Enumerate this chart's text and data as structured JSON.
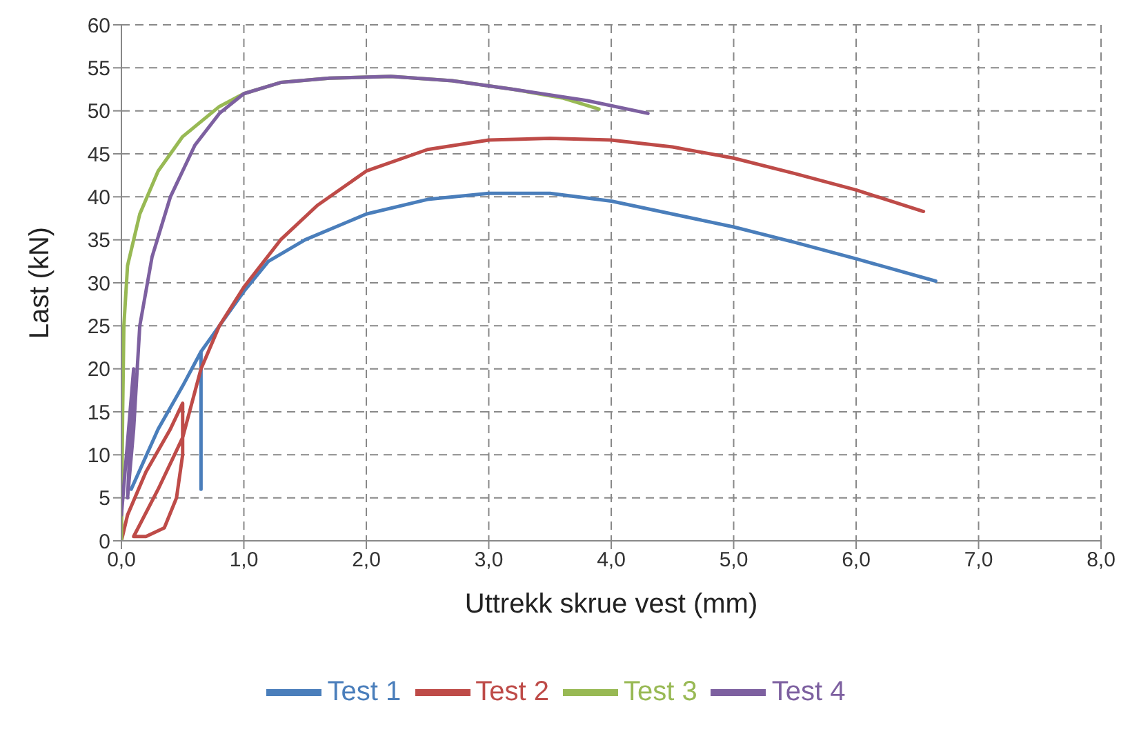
{
  "chart_data": {
    "type": "line",
    "xlabel": "Uttrekk  skrue vest (mm)",
    "ylabel": "Last (kN)",
    "xlim": [
      0,
      8
    ],
    "xticks": [
      {
        "value": 0,
        "label": "0,0"
      },
      {
        "value": 1,
        "label": "1,0"
      },
      {
        "value": 2,
        "label": "2,0"
      },
      {
        "value": 3,
        "label": "3,0"
      },
      {
        "value": 4,
        "label": "4,0"
      },
      {
        "value": 5,
        "label": "5,0"
      },
      {
        "value": 6,
        "label": "6,0"
      },
      {
        "value": 7,
        "label": "7,0"
      },
      {
        "value": 8,
        "label": "8,0"
      }
    ],
    "ylim": [
      0,
      60
    ],
    "yticks": [
      0,
      5,
      10,
      15,
      20,
      25,
      30,
      35,
      40,
      45,
      50,
      55,
      60
    ],
    "grid": true,
    "legend": "bottom",
    "marker": "none",
    "line_style": "solid",
    "series": [
      {
        "name": "Test 1",
        "color": "#4a7ebb",
        "x": [
          0.08,
          0.3,
          0.5,
          0.65,
          0.65,
          0.65,
          0.8,
          1.0,
          1.2,
          1.5,
          2.0,
          2.5,
          3.0,
          3.5,
          4.0,
          4.5,
          5.0,
          5.5,
          6.0,
          6.65
        ],
        "values": [
          6,
          13,
          18,
          22,
          6,
          22,
          25,
          29,
          32.5,
          35,
          38,
          39.7,
          40.4,
          40.4,
          39.5,
          38,
          36.5,
          34.7,
          32.8,
          30.2
        ]
      },
      {
        "name": "Test 2",
        "color": "#be4b48",
        "x": [
          0,
          0.05,
          0.2,
          0.4,
          0.5,
          0.5,
          0.45,
          0.35,
          0.2,
          0.1,
          0.3,
          0.5,
          0.65,
          0.8,
          1.0,
          1.3,
          1.6,
          2.0,
          2.5,
          3.0,
          3.5,
          4.0,
          4.5,
          5.0,
          5.5,
          6.0,
          6.55
        ],
        "values": [
          0,
          3,
          8,
          13,
          16,
          10,
          5,
          1.5,
          0.5,
          0.5,
          6,
          12,
          20,
          25,
          29.5,
          35,
          39,
          43,
          45.5,
          46.6,
          46.8,
          46.6,
          45.8,
          44.5,
          42.7,
          40.8,
          38.3
        ]
      },
      {
        "name": "Test 3",
        "color": "#98b954",
        "x": [
          0,
          0.01,
          0.02,
          0.05,
          0.15,
          0.3,
          0.5,
          0.8,
          1.0,
          1.3,
          1.7,
          2.2,
          2.7,
          3.2,
          3.6,
          3.9
        ],
        "values": [
          0,
          15,
          25,
          32,
          38,
          43,
          47,
          50.5,
          52,
          53.3,
          53.8,
          54,
          53.5,
          52.5,
          51.5,
          50.2
        ]
      },
      {
        "name": "Test 4",
        "color": "#7d60a0",
        "x": [
          0,
          0.1,
          0.05,
          0.1,
          0.15,
          0.25,
          0.4,
          0.6,
          0.8,
          1.0,
          1.3,
          1.7,
          2.2,
          2.7,
          3.2,
          3.8,
          4.3
        ],
        "values": [
          3,
          20,
          5,
          13,
          25,
          33,
          40,
          46,
          49.7,
          52,
          53.3,
          53.8,
          54,
          53.5,
          52.5,
          51.2,
          49.7
        ]
      }
    ]
  }
}
